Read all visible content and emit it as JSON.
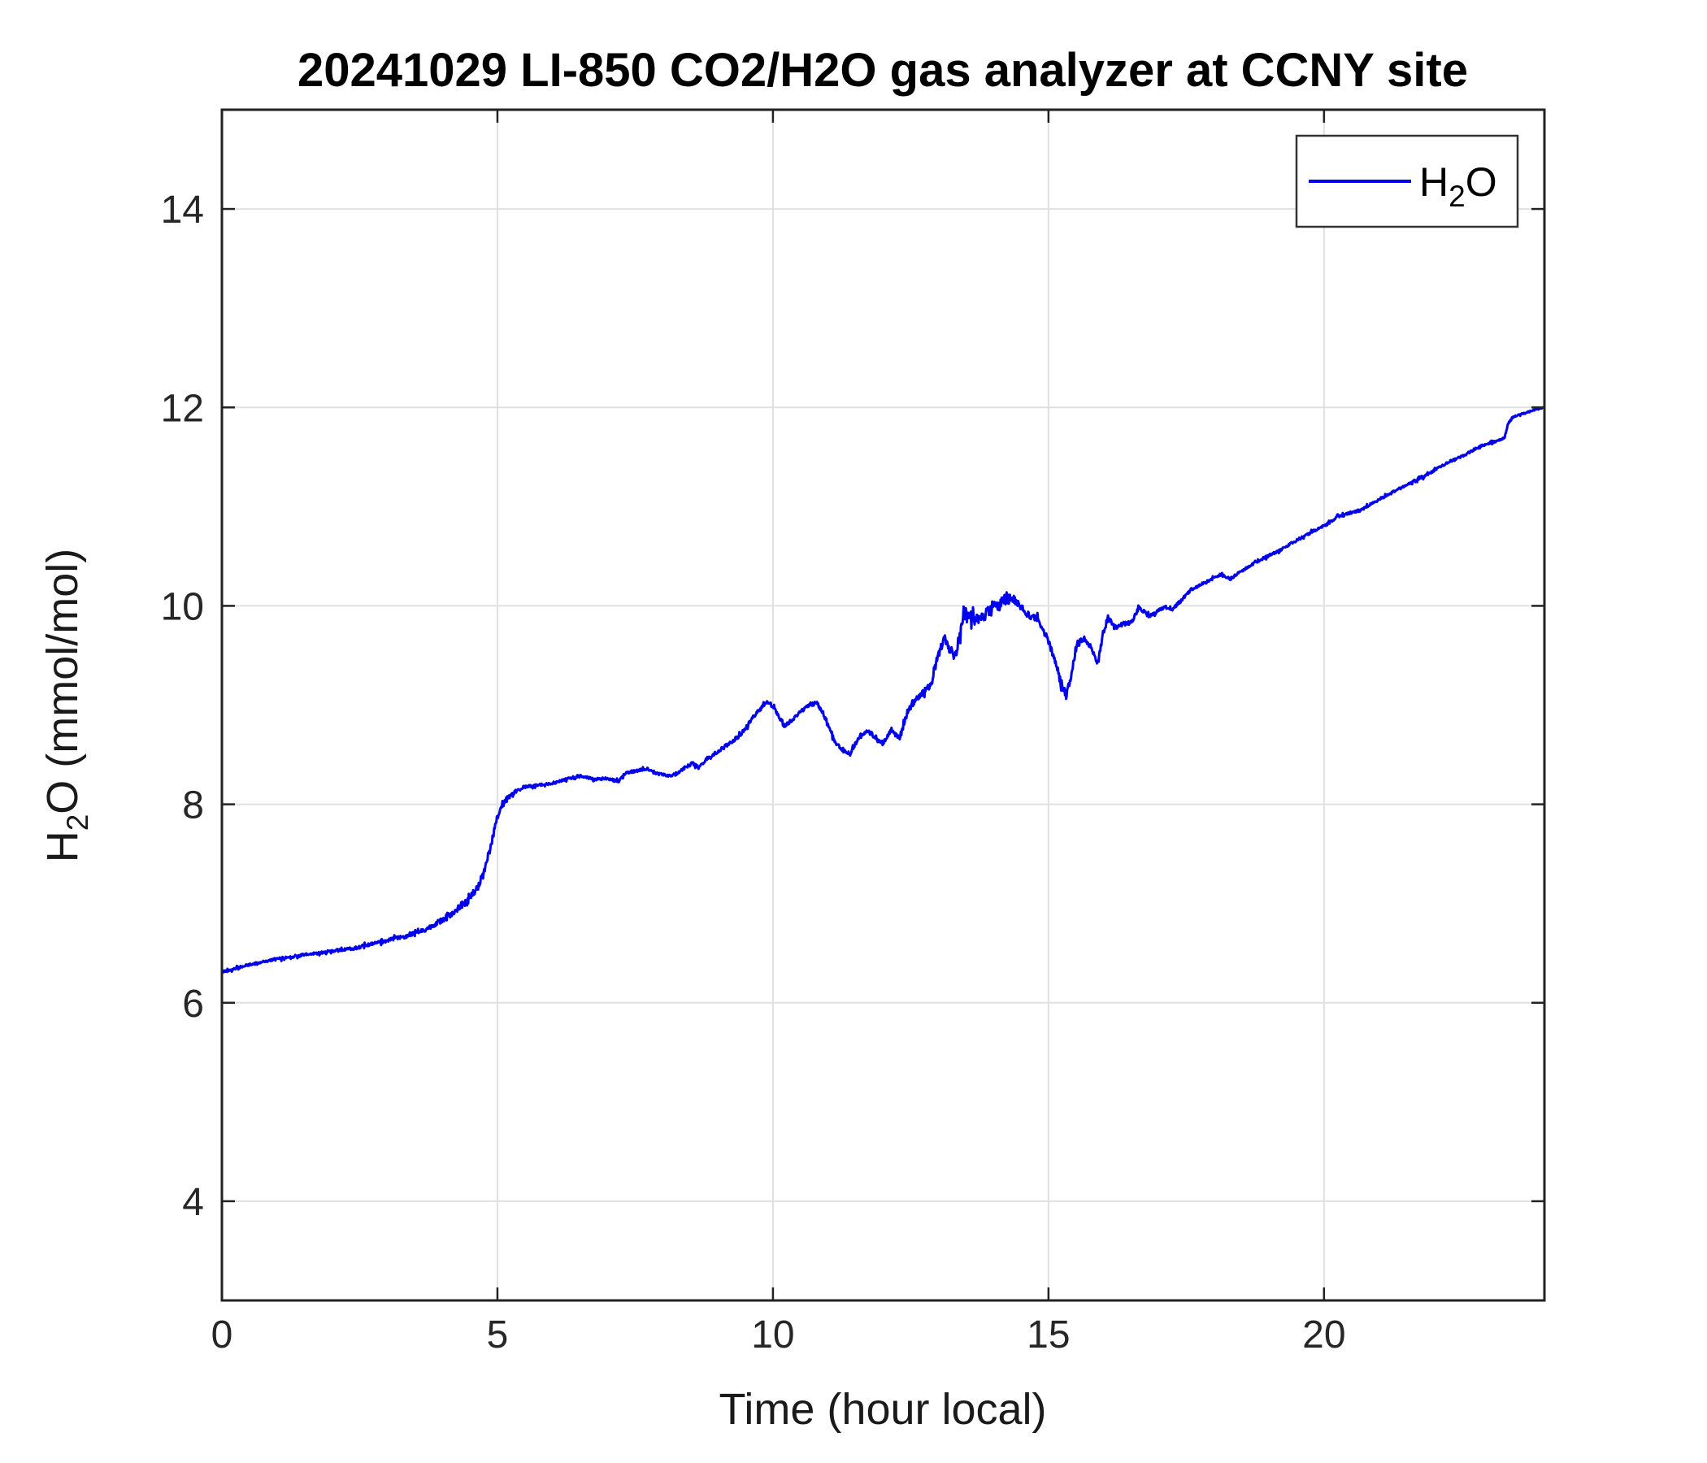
{
  "chart_data": {
    "type": "line",
    "title": "20241029 LI-850 CO2/H2O gas analyzer at CCNY site",
    "xlabel": "Time (hour local)",
    "ylabel": {
      "pre": "H",
      "sub": "2",
      "post": "O (mmol/mol)"
    },
    "legend_label": {
      "pre": "H",
      "sub": "2",
      "post": "O"
    },
    "legend_position": "top-right",
    "grid": true,
    "xlim": [
      0,
      24
    ],
    "ylim": [
      3,
      15
    ],
    "xticks": [
      0,
      5,
      10,
      15,
      20
    ],
    "yticks": [
      4,
      6,
      8,
      10,
      12,
      14
    ],
    "line_color": "#0000EE",
    "grid_color": "#E0E0E0",
    "axis_color": "#222222",
    "tick_text_color": "#262626",
    "series": [
      {
        "name": "H2O",
        "units": "mmol/mol",
        "anchors": [
          [
            0.0,
            6.31,
            0.012
          ],
          [
            0.4,
            6.37,
            0.012
          ],
          [
            0.8,
            6.42,
            0.012
          ],
          [
            1.2,
            6.46,
            0.014
          ],
          [
            1.6,
            6.49,
            0.014
          ],
          [
            2.0,
            6.52,
            0.014
          ],
          [
            2.4,
            6.55,
            0.016
          ],
          [
            2.8,
            6.6,
            0.016
          ],
          [
            3.1,
            6.64,
            0.018
          ],
          [
            3.4,
            6.68,
            0.02
          ],
          [
            3.7,
            6.74,
            0.022
          ],
          [
            3.95,
            6.82,
            0.025
          ],
          [
            4.15,
            6.89,
            0.03
          ],
          [
            4.3,
            6.96,
            0.035
          ],
          [
            4.45,
            7.03,
            0.04
          ],
          [
            4.6,
            7.12,
            0.04
          ],
          [
            4.75,
            7.3,
            0.035
          ],
          [
            4.87,
            7.55,
            0.03
          ],
          [
            4.97,
            7.82,
            0.028
          ],
          [
            5.07,
            7.97,
            0.03
          ],
          [
            5.17,
            8.06,
            0.025
          ],
          [
            5.3,
            8.11,
            0.02
          ],
          [
            5.45,
            8.17,
            0.015
          ],
          [
            5.7,
            8.19,
            0.013
          ],
          [
            6.0,
            8.21,
            0.013
          ],
          [
            6.3,
            8.26,
            0.013
          ],
          [
            6.5,
            8.29,
            0.013
          ],
          [
            6.75,
            8.25,
            0.013
          ],
          [
            7.0,
            8.26,
            0.013
          ],
          [
            7.2,
            8.23,
            0.013
          ],
          [
            7.33,
            8.32,
            0.013
          ],
          [
            7.55,
            8.34,
            0.013
          ],
          [
            7.72,
            8.36,
            0.013
          ],
          [
            7.9,
            8.31,
            0.013
          ],
          [
            8.1,
            8.29,
            0.013
          ],
          [
            8.25,
            8.3,
            0.014
          ],
          [
            8.4,
            8.37,
            0.015
          ],
          [
            8.55,
            8.41,
            0.015
          ],
          [
            8.65,
            8.37,
            0.015
          ],
          [
            8.8,
            8.46,
            0.016
          ],
          [
            9.0,
            8.53,
            0.018
          ],
          [
            9.2,
            8.61,
            0.018
          ],
          [
            9.35,
            8.67,
            0.018
          ],
          [
            9.5,
            8.76,
            0.018
          ],
          [
            9.62,
            8.87,
            0.018
          ],
          [
            9.75,
            8.95,
            0.018
          ],
          [
            9.9,
            9.03,
            0.018
          ],
          [
            10.05,
            8.95,
            0.018
          ],
          [
            10.2,
            8.79,
            0.018
          ],
          [
            10.35,
            8.85,
            0.018
          ],
          [
            10.5,
            8.93,
            0.018
          ],
          [
            10.65,
            9.0,
            0.018
          ],
          [
            10.8,
            9.02,
            0.018
          ],
          [
            10.95,
            8.88,
            0.02
          ],
          [
            11.1,
            8.64,
            0.02
          ],
          [
            11.25,
            8.56,
            0.022
          ],
          [
            11.4,
            8.51,
            0.022
          ],
          [
            11.55,
            8.66,
            0.022
          ],
          [
            11.7,
            8.75,
            0.022
          ],
          [
            11.85,
            8.68,
            0.022
          ],
          [
            12.0,
            8.61,
            0.022
          ],
          [
            12.15,
            8.75,
            0.022
          ],
          [
            12.3,
            8.66,
            0.025
          ],
          [
            12.45,
            8.95,
            0.03
          ],
          [
            12.6,
            9.06,
            0.03
          ],
          [
            12.72,
            9.12,
            0.03
          ],
          [
            12.85,
            9.2,
            0.035
          ],
          [
            13.0,
            9.5,
            0.045
          ],
          [
            13.1,
            9.68,
            0.05
          ],
          [
            13.2,
            9.55,
            0.055
          ],
          [
            13.32,
            9.5,
            0.055
          ],
          [
            13.45,
            9.9,
            0.06
          ],
          [
            13.6,
            9.88,
            0.07
          ],
          [
            13.75,
            9.86,
            0.07
          ],
          [
            13.9,
            9.93,
            0.065
          ],
          [
            14.05,
            10.0,
            0.055
          ],
          [
            14.2,
            10.06,
            0.05
          ],
          [
            14.35,
            10.07,
            0.05
          ],
          [
            14.5,
            9.98,
            0.04
          ],
          [
            14.65,
            9.9,
            0.03
          ],
          [
            14.8,
            9.87,
            0.028
          ],
          [
            14.95,
            9.72,
            0.028
          ],
          [
            15.1,
            9.48,
            0.035
          ],
          [
            15.22,
            9.24,
            0.045
          ],
          [
            15.32,
            9.1,
            0.04
          ],
          [
            15.42,
            9.32,
            0.04
          ],
          [
            15.52,
            9.6,
            0.04
          ],
          [
            15.65,
            9.68,
            0.03
          ],
          [
            15.78,
            9.57,
            0.028
          ],
          [
            15.9,
            9.42,
            0.028
          ],
          [
            16.0,
            9.75,
            0.035
          ],
          [
            16.08,
            9.88,
            0.03
          ],
          [
            16.2,
            9.78,
            0.025
          ],
          [
            16.35,
            9.82,
            0.022
          ],
          [
            16.5,
            9.83,
            0.02
          ],
          [
            16.65,
            9.99,
            0.02
          ],
          [
            16.8,
            9.9,
            0.02
          ],
          [
            16.95,
            9.93,
            0.018
          ],
          [
            17.1,
            9.99,
            0.018
          ],
          [
            17.25,
            9.97,
            0.016
          ],
          [
            17.4,
            10.05,
            0.016
          ],
          [
            17.6,
            10.17,
            0.015
          ],
          [
            17.8,
            10.22,
            0.015
          ],
          [
            18.0,
            10.28,
            0.015
          ],
          [
            18.15,
            10.32,
            0.014
          ],
          [
            18.3,
            10.27,
            0.014
          ],
          [
            18.5,
            10.35,
            0.014
          ],
          [
            18.7,
            10.42,
            0.014
          ],
          [
            18.9,
            10.48,
            0.013
          ],
          [
            19.2,
            10.56,
            0.013
          ],
          [
            19.5,
            10.66,
            0.013
          ],
          [
            19.8,
            10.75,
            0.013
          ],
          [
            20.05,
            10.82,
            0.013
          ],
          [
            20.25,
            10.9,
            0.012
          ],
          [
            20.45,
            10.93,
            0.012
          ],
          [
            20.65,
            10.96,
            0.012
          ],
          [
            20.9,
            11.04,
            0.012
          ],
          [
            21.2,
            11.13,
            0.012
          ],
          [
            21.5,
            11.22,
            0.012
          ],
          [
            21.8,
            11.3,
            0.012
          ],
          [
            22.05,
            11.38,
            0.012
          ],
          [
            22.3,
            11.46,
            0.011
          ],
          [
            22.55,
            11.52,
            0.011
          ],
          [
            22.8,
            11.6,
            0.011
          ],
          [
            23.0,
            11.64,
            0.011
          ],
          [
            23.15,
            11.66,
            0.011
          ],
          [
            23.28,
            11.7,
            0.011
          ],
          [
            23.33,
            11.82,
            0.011
          ],
          [
            23.42,
            11.9,
            0.01
          ],
          [
            23.55,
            11.93,
            0.009
          ],
          [
            23.7,
            11.95,
            0.008
          ],
          [
            23.85,
            11.98,
            0.007
          ],
          [
            24.0,
            12.0,
            0.005
          ]
        ]
      }
    ]
  }
}
